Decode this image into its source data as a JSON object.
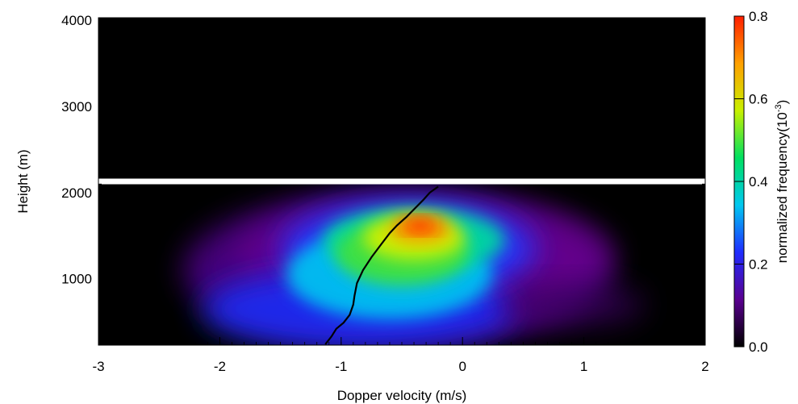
{
  "chart_data": {
    "type": "heatmap",
    "title": "",
    "xlabel": "Dopper velocity (m/s)",
    "ylabel": "Height (m)",
    "xlim": [
      -3,
      2
    ],
    "ylim": [
      230,
      4030
    ],
    "x_ticks": [
      -3,
      -2,
      -1,
      0,
      1,
      2
    ],
    "y_ticks": [
      1000,
      2000,
      3000,
      4000
    ],
    "colorbar": {
      "label": "normalized frequency(10",
      "label_exponent": "-3",
      "label_close": ")",
      "range": [
        0,
        0.8
      ],
      "ticks": [
        "0.0",
        "0.2",
        "0.4",
        "0.6",
        "0.8"
      ],
      "colormap": [
        "#000000",
        "#5a0090",
        "#1f2cff",
        "#00c8f0",
        "#00e060",
        "#c8f000",
        "#ffa000",
        "#ff1e00"
      ]
    },
    "blanked_band": {
      "height": 2130,
      "color": "#ffffff"
    },
    "distribution_peak": {
      "x": -0.35,
      "y": 1620,
      "value": 0.8
    },
    "mean_velocity_profile": {
      "x": [
        -1.13,
        -1.08,
        -1.04,
        -0.98,
        -0.93,
        -0.9,
        -0.89,
        -0.87,
        -0.82,
        -0.75,
        -0.67,
        -0.6,
        -0.54,
        -0.46,
        -0.39,
        -0.32,
        -0.27,
        -0.2
      ],
      "y": [
        240,
        330,
        420,
        490,
        580,
        700,
        800,
        950,
        1100,
        1250,
        1400,
        1530,
        1620,
        1720,
        1820,
        1920,
        2000,
        2070
      ]
    }
  }
}
